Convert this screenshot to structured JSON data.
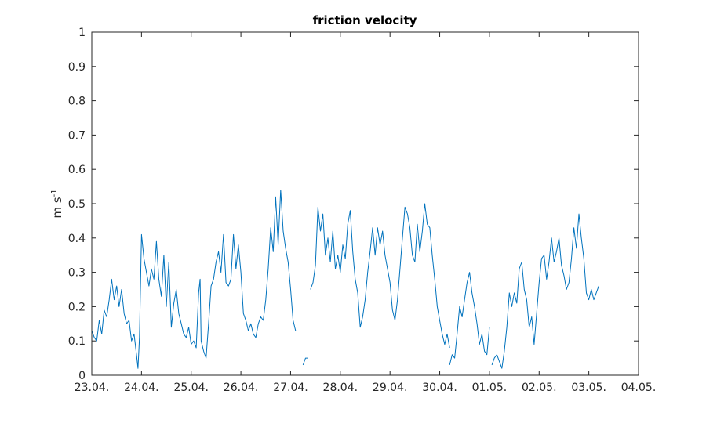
{
  "chart_data": {
    "type": "line",
    "title": "friction velocity",
    "xlabel": "",
    "ylabel": "m s-1",
    "ylabel_main": "m s",
    "ylabel_exp": "-1",
    "xlim": [
      0,
      11
    ],
    "ylim": [
      0,
      1
    ],
    "x_unit": "days from 23.04.",
    "xticks": [
      0,
      1,
      2,
      3,
      4,
      5,
      6,
      7,
      8,
      9,
      10,
      11
    ],
    "xtick_labels": [
      "23.04.",
      "24.04.",
      "25.04.",
      "26.04.",
      "27.04.",
      "28.04.",
      "29.04.",
      "30.04.",
      "01.05.",
      "02.05.",
      "03.05.",
      "04.05."
    ],
    "yticks": [
      0,
      0.1,
      0.2,
      0.3,
      0.4,
      0.5,
      0.6,
      0.7,
      0.8,
      0.9,
      1
    ],
    "ytick_labels": [
      "0",
      "0.1",
      "0.2",
      "0.3",
      "0.4",
      "0.5",
      "0.6",
      "0.7",
      "0.8",
      "0.9",
      "1"
    ],
    "grid": false,
    "series": [
      {
        "color": "#0072bd",
        "segments": [
          [
            [
              0.0,
              0.13
            ],
            [
              0.05,
              0.11
            ],
            [
              0.1,
              0.1
            ],
            [
              0.15,
              0.16
            ],
            [
              0.2,
              0.12
            ],
            [
              0.25,
              0.19
            ],
            [
              0.3,
              0.17
            ],
            [
              0.35,
              0.22
            ],
            [
              0.4,
              0.28
            ],
            [
              0.45,
              0.22
            ],
            [
              0.5,
              0.26
            ],
            [
              0.55,
              0.2
            ],
            [
              0.6,
              0.25
            ],
            [
              0.65,
              0.18
            ],
            [
              0.7,
              0.15
            ],
            [
              0.75,
              0.16
            ],
            [
              0.8,
              0.1
            ],
            [
              0.85,
              0.12
            ],
            [
              0.9,
              0.06
            ],
            [
              0.93,
              0.02
            ],
            [
              0.96,
              0.11
            ],
            [
              1.0,
              0.41
            ],
            [
              1.05,
              0.34
            ],
            [
              1.1,
              0.3
            ],
            [
              1.15,
              0.26
            ],
            [
              1.2,
              0.31
            ],
            [
              1.25,
              0.28
            ],
            [
              1.3,
              0.39
            ],
            [
              1.35,
              0.28
            ],
            [
              1.4,
              0.23
            ],
            [
              1.45,
              0.35
            ],
            [
              1.5,
              0.2
            ],
            [
              1.55,
              0.33
            ],
            [
              1.6,
              0.14
            ],
            [
              1.65,
              0.21
            ],
            [
              1.7,
              0.25
            ],
            [
              1.75,
              0.18
            ],
            [
              1.8,
              0.15
            ],
            [
              1.85,
              0.12
            ],
            [
              1.9,
              0.11
            ],
            [
              1.95,
              0.14
            ],
            [
              2.0,
              0.09
            ],
            [
              2.05,
              0.1
            ],
            [
              2.1,
              0.08
            ],
            [
              2.15,
              0.24
            ],
            [
              2.18,
              0.28
            ],
            [
              2.2,
              0.1
            ],
            [
              2.25,
              0.07
            ],
            [
              2.3,
              0.05
            ],
            [
              2.35,
              0.15
            ],
            [
              2.4,
              0.26
            ],
            [
              2.45,
              0.28
            ],
            [
              2.5,
              0.33
            ],
            [
              2.55,
              0.36
            ],
            [
              2.6,
              0.3
            ],
            [
              2.65,
              0.41
            ],
            [
              2.7,
              0.27
            ],
            [
              2.75,
              0.26
            ],
            [
              2.8,
              0.28
            ],
            [
              2.85,
              0.41
            ],
            [
              2.9,
              0.31
            ],
            [
              2.95,
              0.38
            ],
            [
              3.0,
              0.3
            ],
            [
              3.05,
              0.18
            ],
            [
              3.1,
              0.16
            ],
            [
              3.15,
              0.13
            ],
            [
              3.2,
              0.15
            ],
            [
              3.25,
              0.12
            ],
            [
              3.3,
              0.11
            ],
            [
              3.35,
              0.15
            ],
            [
              3.4,
              0.17
            ],
            [
              3.45,
              0.16
            ],
            [
              3.5,
              0.22
            ],
            [
              3.55,
              0.31
            ],
            [
              3.6,
              0.43
            ],
            [
              3.65,
              0.36
            ],
            [
              3.7,
              0.52
            ],
            [
              3.75,
              0.38
            ],
            [
              3.8,
              0.54
            ],
            [
              3.85,
              0.42
            ],
            [
              3.9,
              0.37
            ],
            [
              3.95,
              0.33
            ],
            [
              4.0,
              0.25
            ],
            [
              4.05,
              0.16
            ],
            [
              4.1,
              0.13
            ]
          ],
          [
            [
              4.25,
              0.03
            ],
            [
              4.3,
              0.05
            ],
            [
              4.35,
              0.05
            ]
          ],
          [
            [
              4.4,
              0.25
            ],
            [
              4.45,
              0.27
            ],
            [
              4.5,
              0.32
            ],
            [
              4.55,
              0.49
            ],
            [
              4.6,
              0.42
            ],
            [
              4.65,
              0.47
            ],
            [
              4.7,
              0.35
            ],
            [
              4.75,
              0.4
            ],
            [
              4.8,
              0.33
            ],
            [
              4.85,
              0.42
            ],
            [
              4.9,
              0.31
            ],
            [
              4.95,
              0.35
            ],
            [
              5.0,
              0.3
            ],
            [
              5.05,
              0.38
            ],
            [
              5.1,
              0.34
            ],
            [
              5.15,
              0.44
            ],
            [
              5.2,
              0.48
            ],
            [
              5.25,
              0.36
            ],
            [
              5.3,
              0.28
            ],
            [
              5.35,
              0.24
            ],
            [
              5.4,
              0.14
            ],
            [
              5.45,
              0.17
            ],
            [
              5.5,
              0.22
            ],
            [
              5.55,
              0.3
            ],
            [
              5.6,
              0.36
            ],
            [
              5.65,
              0.43
            ],
            [
              5.7,
              0.35
            ],
            [
              5.75,
              0.43
            ],
            [
              5.8,
              0.38
            ],
            [
              5.85,
              0.42
            ],
            [
              5.9,
              0.35
            ],
            [
              5.95,
              0.31
            ],
            [
              6.0,
              0.27
            ],
            [
              6.05,
              0.19
            ],
            [
              6.1,
              0.16
            ],
            [
              6.15,
              0.22
            ],
            [
              6.2,
              0.31
            ],
            [
              6.25,
              0.4
            ],
            [
              6.3,
              0.49
            ],
            [
              6.35,
              0.47
            ],
            [
              6.4,
              0.43
            ],
            [
              6.45,
              0.35
            ],
            [
              6.5,
              0.33
            ],
            [
              6.55,
              0.44
            ],
            [
              6.6,
              0.36
            ],
            [
              6.65,
              0.42
            ],
            [
              6.7,
              0.5
            ],
            [
              6.75,
              0.44
            ],
            [
              6.8,
              0.43
            ],
            [
              6.85,
              0.35
            ],
            [
              6.9,
              0.28
            ],
            [
              6.95,
              0.2
            ],
            [
              7.0,
              0.16
            ],
            [
              7.05,
              0.12
            ],
            [
              7.1,
              0.09
            ],
            [
              7.15,
              0.12
            ],
            [
              7.2,
              0.08
            ]
          ],
          [
            [
              7.2,
              0.03
            ],
            [
              7.25,
              0.06
            ],
            [
              7.3,
              0.05
            ],
            [
              7.35,
              0.12
            ],
            [
              7.4,
              0.2
            ],
            [
              7.45,
              0.17
            ],
            [
              7.5,
              0.22
            ],
            [
              7.55,
              0.27
            ],
            [
              7.6,
              0.3
            ],
            [
              7.65,
              0.24
            ],
            [
              7.7,
              0.2
            ],
            [
              7.75,
              0.15
            ],
            [
              7.8,
              0.09
            ],
            [
              7.85,
              0.12
            ],
            [
              7.9,
              0.07
            ],
            [
              7.95,
              0.06
            ],
            [
              8.0,
              0.14
            ]
          ],
          [
            [
              8.05,
              0.03
            ],
            [
              8.1,
              0.05
            ],
            [
              8.15,
              0.06
            ],
            [
              8.2,
              0.04
            ],
            [
              8.25,
              0.02
            ],
            [
              8.3,
              0.07
            ],
            [
              8.35,
              0.14
            ],
            [
              8.4,
              0.24
            ],
            [
              8.45,
              0.2
            ],
            [
              8.5,
              0.24
            ],
            [
              8.55,
              0.21
            ],
            [
              8.6,
              0.31
            ],
            [
              8.65,
              0.33
            ],
            [
              8.7,
              0.25
            ],
            [
              8.75,
              0.22
            ],
            [
              8.8,
              0.14
            ],
            [
              8.85,
              0.17
            ],
            [
              8.9,
              0.09
            ],
            [
              8.95,
              0.18
            ],
            [
              9.0,
              0.27
            ],
            [
              9.05,
              0.34
            ],
            [
              9.1,
              0.35
            ],
            [
              9.15,
              0.28
            ],
            [
              9.2,
              0.33
            ],
            [
              9.25,
              0.4
            ],
            [
              9.3,
              0.33
            ],
            [
              9.35,
              0.36
            ],
            [
              9.4,
              0.4
            ],
            [
              9.45,
              0.32
            ],
            [
              9.5,
              0.29
            ],
            [
              9.55,
              0.25
            ],
            [
              9.6,
              0.27
            ],
            [
              9.65,
              0.34
            ],
            [
              9.7,
              0.43
            ],
            [
              9.75,
              0.37
            ],
            [
              9.8,
              0.47
            ],
            [
              9.85,
              0.4
            ],
            [
              9.9,
              0.34
            ],
            [
              9.95,
              0.24
            ],
            [
              10.0,
              0.22
            ],
            [
              10.05,
              0.25
            ],
            [
              10.1,
              0.22
            ],
            [
              10.15,
              0.24
            ],
            [
              10.2,
              0.26
            ]
          ]
        ]
      }
    ]
  }
}
